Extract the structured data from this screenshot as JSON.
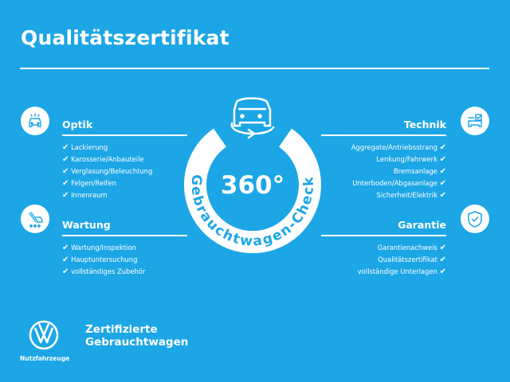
{
  "title": "Qualitätszertifikat",
  "colors": {
    "background": "#1ca6e6",
    "foreground": "#ffffff"
  },
  "check_mark": "✔",
  "badge": {
    "big_text": "360°",
    "ring_text": "Gebrauchtwagen-Check",
    "icon": "car-rotate-icon"
  },
  "sections": {
    "optik": {
      "heading": "Optik",
      "icon": "car-lights-icon",
      "items": [
        "Lackierung",
        "Karosserie/Anbauteile",
        "Verglasung/Beleuchtung",
        "Felgen/Reifen",
        "Innenraum"
      ]
    },
    "wartung": {
      "heading": "Wartung",
      "icon": "service-tools-icon",
      "items": [
        "Wartung/Inspektion",
        "Hauptuntersuchung",
        "vollständiges Zubehör"
      ]
    },
    "technik": {
      "heading": "Technik",
      "icon": "vehicle-checklist-icon",
      "items": [
        "Aggregate/Antriebsstrang",
        "Lenkung/Fahrwerk",
        "Bremsanlage",
        "Unterboden/Abgasanlage",
        "Sicherheit/Elektrik"
      ]
    },
    "garantie": {
      "heading": "Garantie",
      "icon": "shield-check-icon",
      "items": [
        "Garantienachweis",
        "Qualitätszertifikat",
        "vollständige Unterlagen"
      ]
    }
  },
  "brand": {
    "line1": "Zertifizierte",
    "line2": "Gebrauchtwagen",
    "sub": "Nutzfahrzeuge",
    "logo": "VW"
  }
}
